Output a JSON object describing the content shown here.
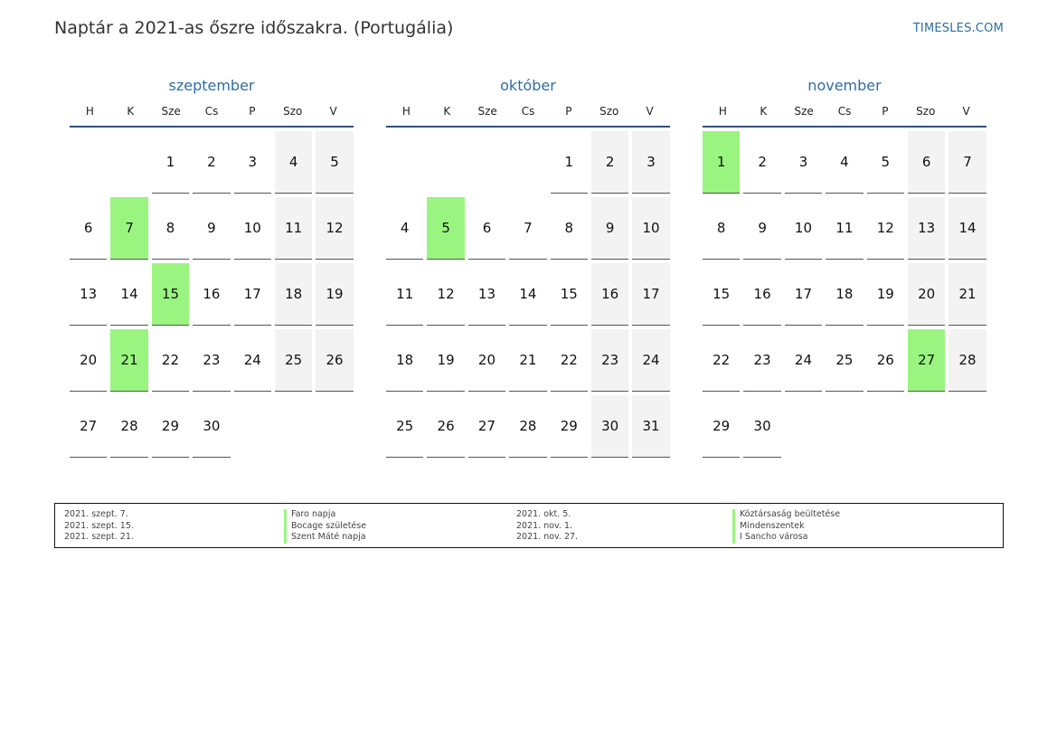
{
  "header": {
    "title": "Naptár a 2021-as őszre időszakra. (Portugália)",
    "site": "TIMESLES.COM"
  },
  "weekdays": [
    "H",
    "K",
    "Sze",
    "Cs",
    "P",
    "Szo",
    "V"
  ],
  "colors": {
    "month_title": "#2e6da4",
    "holiday": "#99f57f",
    "weekend": "#f3f3f3",
    "rule": "#34507a"
  },
  "months": [
    {
      "name": "szeptember",
      "first_weekday_offset": 2,
      "days": 30,
      "holidays": [
        7,
        15,
        21
      ]
    },
    {
      "name": "október",
      "first_weekday_offset": 4,
      "days": 31,
      "holidays": [
        5
      ]
    },
    {
      "name": "november",
      "first_weekday_offset": 0,
      "days": 30,
      "holidays": [
        1,
        27
      ]
    }
  ],
  "legend": [
    {
      "date": "2021. szept. 7.",
      "name": "Faro napja"
    },
    {
      "date": "2021. szept. 15.",
      "name": "Bocage születése"
    },
    {
      "date": "2021. szept. 21.",
      "name": "Szent Máté napja"
    },
    {
      "date": "2021. okt. 5.",
      "name": "Köztársaság beültetése"
    },
    {
      "date": "2021. nov. 1.",
      "name": "Mindenszentek"
    },
    {
      "date": "2021. nov. 27.",
      "name": "I Sancho városa"
    }
  ]
}
